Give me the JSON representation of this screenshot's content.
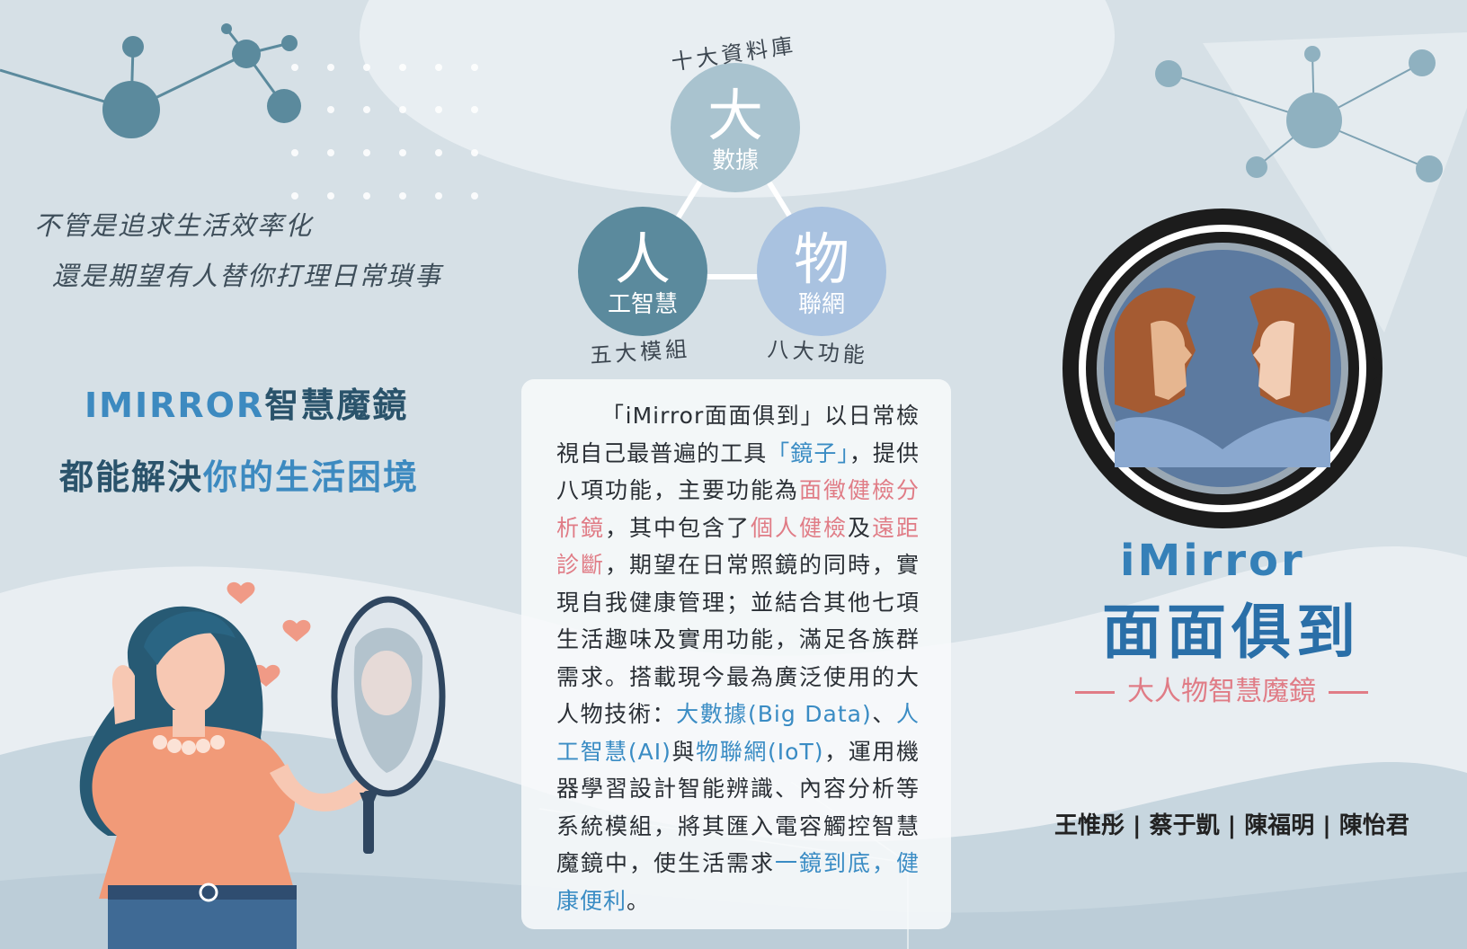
{
  "tagline": {
    "line1": "不管是追求生活效率化",
    "line2": "還是期望有人替你打理日常瑣事"
  },
  "headline": {
    "line1_brand": "IMIRROR",
    "line1_rest": "智慧魔鏡",
    "line2_a": "都能解決",
    "line2_b": "你的生活困境"
  },
  "diagram": {
    "top": {
      "big": "大",
      "small": "數據",
      "arc": "十大資料庫"
    },
    "left": {
      "big": "人",
      "small": "工智慧",
      "arc": "五大模組"
    },
    "right": {
      "big": "物",
      "small": "聯網",
      "arc": "八大功能"
    }
  },
  "paragraph": [
    {
      "t": "「iMirror面面俱到」以日常檢視自己最普遍的工具",
      "c": ""
    },
    {
      "t": "「鏡子」",
      "c": "blue"
    },
    {
      "t": "，提供八項功能，主要功能為",
      "c": ""
    },
    {
      "t": "面徵健檢分析鏡",
      "c": "red"
    },
    {
      "t": "，其中包含了",
      "c": ""
    },
    {
      "t": "個人健檢",
      "c": "red"
    },
    {
      "t": "及",
      "c": ""
    },
    {
      "t": "遠距診斷",
      "c": "red"
    },
    {
      "t": "，期望在日常照鏡的同時，實現自我健康管理；並結合其他七項生活趣味及實用功能，滿足各族群需求。搭載現今最為廣泛使用的大人物技術：",
      "c": ""
    },
    {
      "t": "大數據(Big Data)",
      "c": "blue"
    },
    {
      "t": "、",
      "c": ""
    },
    {
      "t": "人工智慧(AI)",
      "c": "blue"
    },
    {
      "t": "與",
      "c": ""
    },
    {
      "t": "物聯網(IoT)",
      "c": "blue"
    },
    {
      "t": "，運用機器學習設計智能辨識、內容分析等系統模組，將其匯入電容觸控智慧魔鏡中，使生活需求",
      "c": ""
    },
    {
      "t": "一鏡到底，健康便利",
      "c": "blue"
    },
    {
      "t": "。",
      "c": ""
    }
  ],
  "brand": {
    "name": "iMirror",
    "title": "面面俱到",
    "subtitle": "大人物智慧魔鏡"
  },
  "authors": "王惟彤 | 蔡于凱 | 陳福明 | 陳怡君",
  "colors": {
    "background": "#d6e0e6",
    "node_top": "#a9c3cf",
    "node_left": "#5b8a9d",
    "node_right": "#a9c2e0",
    "accent_blue": "#3a8cc4",
    "accent_red": "#e07c86",
    "dark_teal": "#2a536b"
  }
}
